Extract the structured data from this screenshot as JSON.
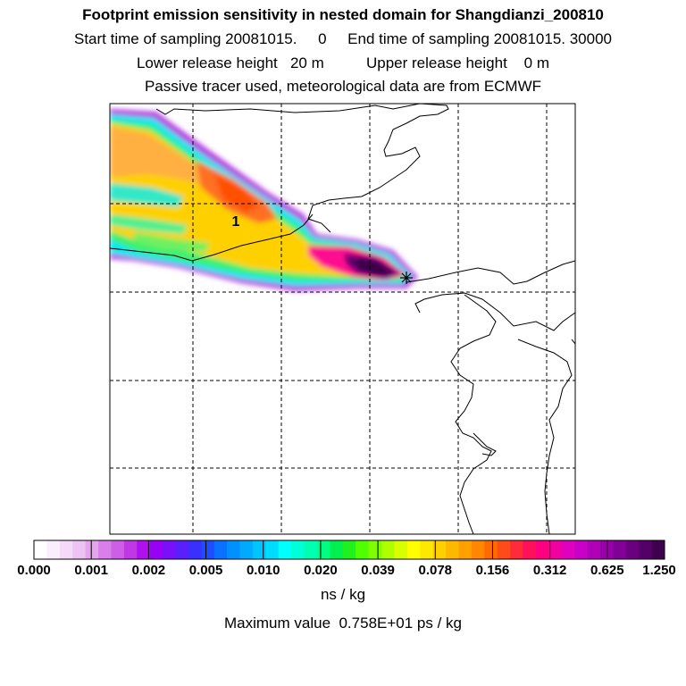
{
  "header": {
    "title": "Footprint emission sensitivity in nested domain for Shangdianzi_200810",
    "line2": "Start time of sampling 20081015.     0     End time of sampling 20081015. 30000",
    "line3": "Lower release height   20 m          Upper release height    0 m",
    "line4": "Passive tracer used, meteorological data are from ECMWF"
  },
  "map": {
    "station_marker_label": "1",
    "station_marker": "star-icon"
  },
  "colorbar": {
    "colors": [
      "#ffffff",
      "#fbeefc",
      "#f5d9f8",
      "#efc2f4",
      "#e4a5ef",
      "#d880ea",
      "#cd5ee6",
      "#c038e6",
      "#b010f0",
      "#9b00f6",
      "#7a10fa",
      "#5a20fc",
      "#3a30fe",
      "#1e4cff",
      "#0a70ff",
      "#0090ff",
      "#00aaff",
      "#00c4ff",
      "#00dcff",
      "#00ffff",
      "#00ffd8",
      "#00ffb0",
      "#00ff80",
      "#00f050",
      "#20f020",
      "#50ff00",
      "#80ff00",
      "#b0ff00",
      "#d8ff00",
      "#ffff00",
      "#ffe800",
      "#ffd000",
      "#ffb800",
      "#ffa000",
      "#ff8800",
      "#ff6a00",
      "#ff4a1a",
      "#ff2a3a",
      "#ff105a",
      "#ff0080",
      "#f200a0",
      "#e000c0",
      "#c800c8",
      "#b000b8",
      "#9800a8",
      "#800098",
      "#6a0080",
      "#540068",
      "#400050"
    ],
    "tick_labels": [
      "0.000",
      "0.001",
      "0.002",
      "0.005",
      "0.010",
      "0.020",
      "0.039",
      "0.078",
      "0.156",
      "0.312",
      "0.625",
      "1.250"
    ],
    "units": "ns / kg",
    "max_value_text": "Maximum value  0.758E+01 ps / kg"
  }
}
